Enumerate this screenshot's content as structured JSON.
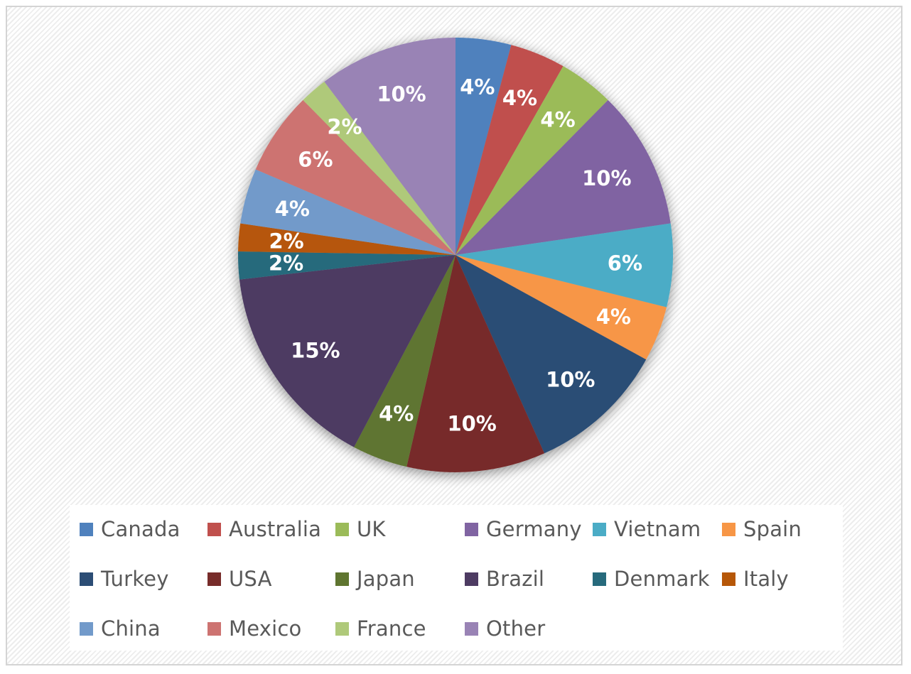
{
  "chart_data": {
    "type": "pie",
    "title": "",
    "start_angle_deg": 0,
    "direction": "clockwise",
    "legend_position": "bottom",
    "slices": [
      {
        "label": "Canada",
        "value": 4,
        "display": "4%",
        "color": "#4F81BD"
      },
      {
        "label": "Australia",
        "value": 4,
        "display": "4%",
        "color": "#C0504D"
      },
      {
        "label": "UK",
        "value": 4,
        "display": "4%",
        "color": "#9BBB59"
      },
      {
        "label": "Germany",
        "value": 10,
        "display": "10%",
        "color": "#8064A2"
      },
      {
        "label": "Vietnam",
        "value": 6,
        "display": "6%",
        "color": "#4BACC6"
      },
      {
        "label": "Spain",
        "value": 4,
        "display": "4%",
        "color": "#F79646"
      },
      {
        "label": "Turkey",
        "value": 10,
        "display": "10%",
        "color": "#2C4D75"
      },
      {
        "label": "USA",
        "value": 10,
        "display": "10%",
        "color": "#772C2A"
      },
      {
        "label": "Japan",
        "value": 4,
        "display": "4%",
        "color": "#5F7530"
      },
      {
        "label": "Brazil",
        "value": 15,
        "display": "15%",
        "color": "#4D3B62"
      },
      {
        "label": "Denmark",
        "value": 2,
        "display": "2%",
        "color": "#276A7C"
      },
      {
        "label": "Italy",
        "value": 2,
        "display": "2%",
        "color": "#B65708"
      },
      {
        "label": "China",
        "value": 4,
        "display": "4%",
        "color": "#729ACA"
      },
      {
        "label": "Mexico",
        "value": 6,
        "display": "6%",
        "color": "#CD7371"
      },
      {
        "label": "France",
        "value": 2,
        "display": "2%",
        "color": "#AFC97A"
      },
      {
        "label": "Other",
        "value": 10,
        "display": "10%",
        "color": "#9983B5"
      }
    ]
  }
}
